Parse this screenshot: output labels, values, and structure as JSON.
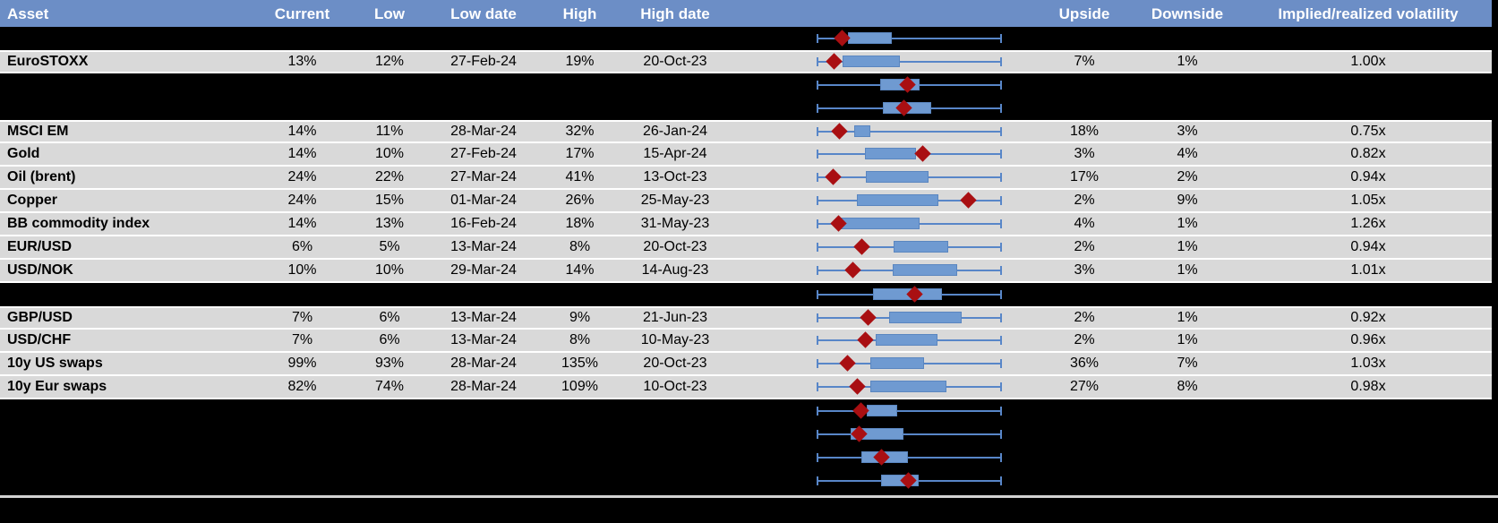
{
  "header": {
    "columns": [
      "Asset",
      "Current",
      "Low",
      "Low date",
      "High",
      "High date",
      "",
      "Upside",
      "Downside",
      "Implied/realized volatility"
    ]
  },
  "colors": {
    "header_bg": "#6c8ec6",
    "header_text": "#ffffff",
    "row_bg": "#d9d9d9",
    "redacted_bg": "#000000",
    "whisker": "#5886c8",
    "box_fill": "#6f9ad1",
    "box_border": "#5a86c0",
    "diamond": "#a90f12",
    "separator_line": "#d2d2d2"
  },
  "rows": [
    {
      "type": "redacted",
      "plot": {
        "diamond": 0.132,
        "box": [
          0.165,
          0.406
        ]
      }
    },
    {
      "type": "data",
      "asset": "EuroSTOXX",
      "current": "13%",
      "low": "12%",
      "low_date": "27-Feb-24",
      "high": "19%",
      "high_date": "20-Oct-23",
      "upside": "7%",
      "downside": "1%",
      "implied_realized": "1.00x",
      "plot": {
        "diamond": 0.091,
        "box": [
          0.135,
          0.449
        ]
      }
    },
    {
      "type": "redacted",
      "plot": {
        "diamond": 0.489,
        "box": [
          0.343,
          0.555
        ]
      }
    },
    {
      "type": "redacted",
      "plot": {
        "diamond": 0.47,
        "box": [
          0.355,
          0.62
        ]
      }
    },
    {
      "type": "data",
      "asset": "MSCI EM",
      "current": "14%",
      "low": "11%",
      "low_date": "28-Mar-24",
      "high": "32%",
      "high_date": "26-Jan-24",
      "upside": "18%",
      "downside": "3%",
      "implied_realized": "0.75x",
      "plot": {
        "diamond": 0.121,
        "box": [
          0.2,
          0.29
        ]
      }
    },
    {
      "type": "data",
      "asset": "Gold",
      "current": "14%",
      "low": "10%",
      "low_date": "27-Feb-24",
      "high": "17%",
      "high_date": "15-Apr-24",
      "upside": "3%",
      "downside": "4%",
      "implied_realized": "0.82x",
      "plot": {
        "diamond": 0.572,
        "box": [
          0.26,
          0.538
        ]
      }
    },
    {
      "type": "data",
      "asset": "Oil (brent)",
      "current": "24%",
      "low": "22%",
      "low_date": "27-Mar-24",
      "high": "41%",
      "high_date": "13-Oct-23",
      "upside": "17%",
      "downside": "2%",
      "implied_realized": "0.94x",
      "plot": {
        "diamond": 0.084,
        "box": [
          0.263,
          0.604
        ]
      }
    },
    {
      "type": "data",
      "asset": "Copper",
      "current": "24%",
      "low": "15%",
      "low_date": "01-Mar-24",
      "high": "26%",
      "high_date": "25-May-23",
      "upside": "2%",
      "downside": "9%",
      "implied_realized": "1.05x",
      "plot": {
        "diamond": 0.824,
        "box": [
          0.214,
          0.661
        ]
      }
    },
    {
      "type": "data",
      "asset": "BB commodity index",
      "current": "14%",
      "low": "13%",
      "low_date": "16-Feb-24",
      "high": "18%",
      "high_date": "31-May-23",
      "upside": "4%",
      "downside": "1%",
      "implied_realized": "1.26x",
      "plot": {
        "diamond": 0.116,
        "box": [
          0.124,
          0.556
        ]
      }
    },
    {
      "type": "data",
      "asset": "EUR/USD",
      "current": "6%",
      "low": "5%",
      "low_date": "13-Mar-24",
      "high": "8%",
      "high_date": "20-Oct-23",
      "upside": "2%",
      "downside": "1%",
      "implied_realized": "0.94x",
      "plot": {
        "diamond": 0.243,
        "box": [
          0.417,
          0.71
        ]
      }
    },
    {
      "type": "data",
      "asset": "USD/NOK",
      "current": "10%",
      "low": "10%",
      "low_date": "29-Mar-24",
      "high": "14%",
      "high_date": "14-Aug-23",
      "upside": "3%",
      "downside": "1%",
      "implied_realized": "1.01x",
      "plot": {
        "diamond": 0.192,
        "box": [
          0.412,
          0.759
        ]
      }
    },
    {
      "type": "redacted",
      "plot": {
        "diamond": 0.531,
        "box": [
          0.303,
          0.678
        ]
      }
    },
    {
      "type": "data",
      "asset": "GBP/USD",
      "current": "7%",
      "low": "6%",
      "low_date": "13-Mar-24",
      "high": "9%",
      "high_date": "21-Jun-23",
      "upside": "2%",
      "downside": "1%",
      "implied_realized": "0.92x",
      "plot": {
        "diamond": 0.278,
        "box": [
          0.392,
          0.783
        ]
      }
    },
    {
      "type": "data",
      "asset": "USD/CHF",
      "current": "7%",
      "low": "6%",
      "low_date": "13-Mar-24",
      "high": "8%",
      "high_date": "10-May-23",
      "upside": "2%",
      "downside": "1%",
      "implied_realized": "0.96x",
      "plot": {
        "diamond": 0.262,
        "box": [
          0.319,
          0.653
        ]
      }
    },
    {
      "type": "data",
      "asset": "10y US swaps",
      "current": "99%",
      "low": "93%",
      "low_date": "28-Mar-24",
      "high": "135%",
      "high_date": "20-Oct-23",
      "upside": "36%",
      "downside": "7%",
      "implied_realized": "1.03x",
      "plot": {
        "diamond": 0.161,
        "box": [
          0.287,
          0.58
        ]
      }
    },
    {
      "type": "data",
      "asset": "10y Eur swaps",
      "current": "82%",
      "low": "74%",
      "low_date": "28-Mar-24",
      "high": "109%",
      "high_date": "10-Oct-23",
      "upside": "27%",
      "downside": "8%",
      "implied_realized": "0.98x",
      "plot": {
        "diamond": 0.216,
        "box": [
          0.287,
          0.702
        ]
      }
    },
    {
      "type": "redacted",
      "plot": {
        "diamond": 0.238,
        "box": [
          0.27,
          0.433
        ]
      }
    },
    {
      "type": "redacted",
      "plot": {
        "diamond": 0.226,
        "box": [
          0.181,
          0.466
        ]
      }
    },
    {
      "type": "redacted",
      "plot": {
        "diamond": 0.347,
        "box": [
          0.238,
          0.493
        ]
      }
    },
    {
      "type": "redacted",
      "plot": {
        "diamond": 0.493,
        "box": [
          0.347,
          0.552
        ]
      }
    }
  ],
  "chart_data": {
    "type": "table",
    "title": "Implied volatility overview with low-high range box plots",
    "columns": [
      "Asset",
      "Current",
      "Low",
      "Low date",
      "High",
      "High date",
      "Upside",
      "Downside",
      "Implied/realized volatility"
    ],
    "rows": [
      [
        "EuroSTOXX",
        "13%",
        "12%",
        "27-Feb-24",
        "19%",
        "20-Oct-23",
        "7%",
        "1%",
        "1.00x"
      ],
      [
        "MSCI EM",
        "14%",
        "11%",
        "28-Mar-24",
        "32%",
        "26-Jan-24",
        "18%",
        "3%",
        "0.75x"
      ],
      [
        "Gold",
        "14%",
        "10%",
        "27-Feb-24",
        "17%",
        "15-Apr-24",
        "3%",
        "4%",
        "0.82x"
      ],
      [
        "Oil (brent)",
        "24%",
        "22%",
        "27-Mar-24",
        "41%",
        "13-Oct-23",
        "17%",
        "2%",
        "0.94x"
      ],
      [
        "Copper",
        "24%",
        "15%",
        "01-Mar-24",
        "26%",
        "25-May-23",
        "2%",
        "9%",
        "1.05x"
      ],
      [
        "BB commodity index",
        "14%",
        "13%",
        "16-Feb-24",
        "18%",
        "31-May-23",
        "4%",
        "1%",
        "1.26x"
      ],
      [
        "EUR/USD",
        "6%",
        "5%",
        "13-Mar-24",
        "8%",
        "20-Oct-23",
        "2%",
        "1%",
        "0.94x"
      ],
      [
        "USD/NOK",
        "10%",
        "10%",
        "29-Mar-24",
        "14%",
        "14-Aug-23",
        "3%",
        "1%",
        "1.01x"
      ],
      [
        "GBP/USD",
        "7%",
        "6%",
        "13-Mar-24",
        "9%",
        "21-Jun-23",
        "2%",
        "1%",
        "0.92x"
      ],
      [
        "USD/CHF",
        "7%",
        "6%",
        "13-Mar-24",
        "8%",
        "10-May-23",
        "2%",
        "1%",
        "0.96x"
      ],
      [
        "10y US swaps",
        "99%",
        "93%",
        "28-Mar-24",
        "135%",
        "20-Oct-23",
        "36%",
        "7%",
        "1.03x"
      ],
      [
        "10y Eur swaps",
        "82%",
        "74%",
        "28-Mar-24",
        "109%",
        "10-Oct-23",
        "27%",
        "8%",
        "0.98x"
      ]
    ],
    "embedded_boxplots": {
      "layout": "one horizontal box-and-whisker sparkline per table row between 'High date' and 'Upside' columns; whiskers with end caps span the full 0-1 range on every row; blue box = inner band; dark-red diamond = current level; rows with black fill are redacted",
      "xlim": [
        0,
        1
      ],
      "series": [
        {
          "row": "redacted-1",
          "diamond": 0.132,
          "box": [
            0.165,
            0.406
          ]
        },
        {
          "row": "EuroSTOXX",
          "diamond": 0.091,
          "box": [
            0.135,
            0.449
          ]
        },
        {
          "row": "redacted-2",
          "diamond": 0.489,
          "box": [
            0.343,
            0.555
          ]
        },
        {
          "row": "redacted-3",
          "diamond": 0.47,
          "box": [
            0.355,
            0.62
          ]
        },
        {
          "row": "MSCI EM",
          "diamond": 0.121,
          "box": [
            0.2,
            0.29
          ]
        },
        {
          "row": "Gold",
          "diamond": 0.572,
          "box": [
            0.26,
            0.538
          ]
        },
        {
          "row": "Oil (brent)",
          "diamond": 0.084,
          "box": [
            0.263,
            0.604
          ]
        },
        {
          "row": "Copper",
          "diamond": 0.824,
          "box": [
            0.214,
            0.661
          ]
        },
        {
          "row": "BB commodity index",
          "diamond": 0.116,
          "box": [
            0.124,
            0.556
          ]
        },
        {
          "row": "EUR/USD",
          "diamond": 0.243,
          "box": [
            0.417,
            0.71
          ]
        },
        {
          "row": "USD/NOK",
          "diamond": 0.192,
          "box": [
            0.412,
            0.759
          ]
        },
        {
          "row": "redacted-4",
          "diamond": 0.531,
          "box": [
            0.303,
            0.678
          ]
        },
        {
          "row": "GBP/USD",
          "diamond": 0.278,
          "box": [
            0.392,
            0.783
          ]
        },
        {
          "row": "USD/CHF",
          "diamond": 0.262,
          "box": [
            0.319,
            0.653
          ]
        },
        {
          "row": "10y US swaps",
          "diamond": 0.161,
          "box": [
            0.287,
            0.58
          ]
        },
        {
          "row": "10y Eur swaps",
          "diamond": 0.216,
          "box": [
            0.287,
            0.702
          ]
        },
        {
          "row": "redacted-5",
          "diamond": 0.238,
          "box": [
            0.27,
            0.433
          ]
        },
        {
          "row": "redacted-6",
          "diamond": 0.226,
          "box": [
            0.181,
            0.466
          ]
        },
        {
          "row": "redacted-7",
          "diamond": 0.347,
          "box": [
            0.238,
            0.493
          ]
        },
        {
          "row": "redacted-8",
          "diamond": 0.493,
          "box": [
            0.347,
            0.552
          ]
        }
      ]
    }
  }
}
